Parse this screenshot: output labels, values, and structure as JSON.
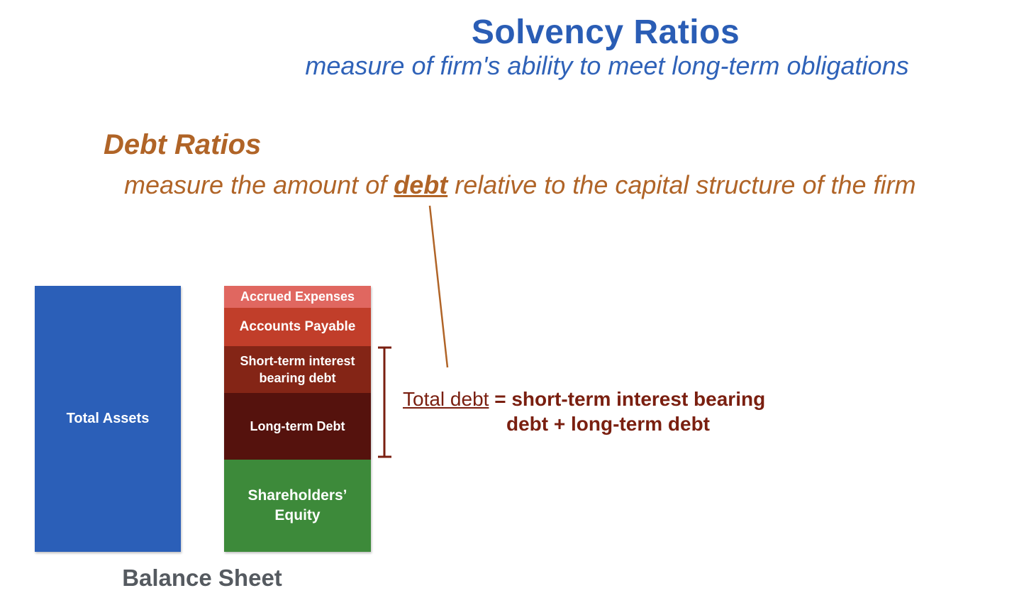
{
  "header": {
    "title": "Solvency Ratios",
    "subtitle": "measure of firm's ability to meet long-term obligations"
  },
  "section": {
    "title": "Debt Ratios",
    "desc_before": "measure the amount of ",
    "desc_keyword": "debt",
    "desc_after": " relative to the capital structure of the firm"
  },
  "balance_sheet": {
    "label": "Balance Sheet",
    "assets": "Total Assets",
    "liabilities": {
      "accrued": "Accrued Expenses",
      "payable": "Accounts Payable",
      "short_term_line1": "Short-term interest",
      "short_term_line2": "bearing debt",
      "long_term": "Long-term Debt",
      "equity_line1": "Shareholders’",
      "equity_line2": "Equity"
    }
  },
  "formula": {
    "term": "Total debt",
    "line1_rest": " = short-term interest bearing",
    "line2": "debt + long-term debt"
  },
  "colors": {
    "title_blue": "#2a5db5",
    "section_orange": "#b06427",
    "assets_blue": "#2b5fb8",
    "accrued": "#e06760",
    "payable": "#c13e2a",
    "short_term_debt": "#842516",
    "long_term_debt": "#55120d",
    "equity_green": "#3d8a3a",
    "formula_maroon": "#7a1f10"
  }
}
